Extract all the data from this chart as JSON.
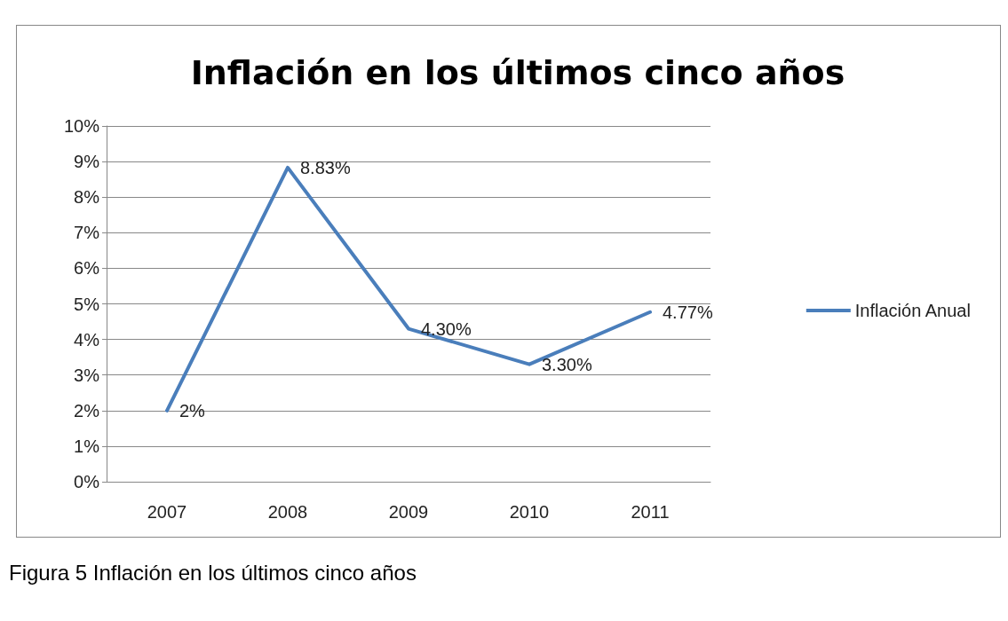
{
  "chart_data": {
    "type": "line",
    "title": "Inflación en los últimos cinco años",
    "categories": [
      "2007",
      "2008",
      "2009",
      "2010",
      "2011"
    ],
    "series": [
      {
        "name": "Inflación Anual",
        "color": "#4a7ebb",
        "values": [
          2,
          8.83,
          4.3,
          3.3,
          4.77
        ],
        "value_labels": [
          "2%",
          "8.83%",
          "4.30%",
          "3.30%",
          "4.77%"
        ]
      }
    ],
    "ylim": [
      0,
      10
    ],
    "yticks": [
      {
        "value": 0,
        "label": "0%"
      },
      {
        "value": 1,
        "label": "1%"
      },
      {
        "value": 2,
        "label": "2%"
      },
      {
        "value": 3,
        "label": "3%"
      },
      {
        "value": 4,
        "label": "4%"
      },
      {
        "value": 5,
        "label": "5%"
      },
      {
        "value": 6,
        "label": "6%"
      },
      {
        "value": 7,
        "label": "7%"
      },
      {
        "value": 8,
        "label": "8%"
      },
      {
        "value": 9,
        "label": "9%"
      },
      {
        "value": 10,
        "label": "10%"
      }
    ],
    "grid": "y",
    "legend": "right",
    "marker": "none",
    "line_style": "solid",
    "annotations": [
      "Figura 5 Inflación en los últimos cinco años"
    ]
  }
}
